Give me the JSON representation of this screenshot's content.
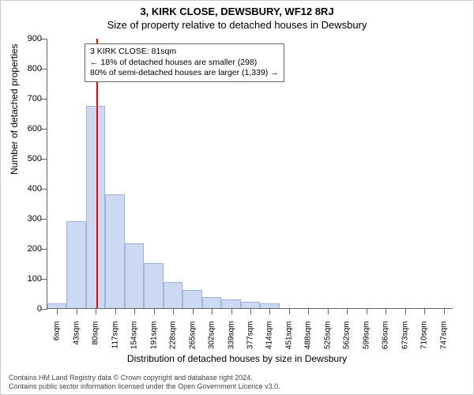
{
  "title": "3, KIRK CLOSE, DEWSBURY, WF12 8RJ",
  "subtitle": "Size of property relative to detached houses in Dewsbury",
  "y_axis": {
    "title": "Number of detached properties",
    "min": 0,
    "max": 900,
    "step": 100,
    "label_fontsize": 11
  },
  "x_axis": {
    "title": "Distribution of detached houses by size in Dewsbury",
    "labels": [
      "6sqm",
      "43sqm",
      "80sqm",
      "117sqm",
      "154sqm",
      "191sqm",
      "228sqm",
      "265sqm",
      "302sqm",
      "339sqm",
      "377sqm",
      "414sqm",
      "451sqm",
      "488sqm",
      "525sqm",
      "562sqm",
      "599sqm",
      "636sqm",
      "673sqm",
      "710sqm",
      "747sqm"
    ],
    "label_fontsize": 10
  },
  "bars": {
    "values": [
      15,
      290,
      675,
      380,
      215,
      150,
      88,
      60,
      38,
      28,
      20,
      15,
      0,
      0,
      0,
      0,
      0,
      0,
      0,
      0,
      0
    ],
    "fill": "#cdd9f2",
    "stroke": "#9fb3db",
    "width_frac": 1.0
  },
  "marker": {
    "x_value_sqm": 81,
    "color": "#ff0000"
  },
  "annotation": {
    "line1": "3 KIRK CLOSE: 81sqm",
    "line2": "← 18% of detached houses are smaller (298)",
    "line3": "80% of semi-detached houses are larger (1,339) →"
  },
  "footnote": {
    "line1": "Contains HM Land Registry data © Crown copyright and database right 2024.",
    "line2": "Contains public sector information licensed under the Open Government Licence v3.0."
  },
  "style": {
    "background": "#ffffff",
    "axis_color": "#666666",
    "title_fontsize": 13,
    "annotation_fontsize": 10.5,
    "footnote_fontsize": 9
  }
}
